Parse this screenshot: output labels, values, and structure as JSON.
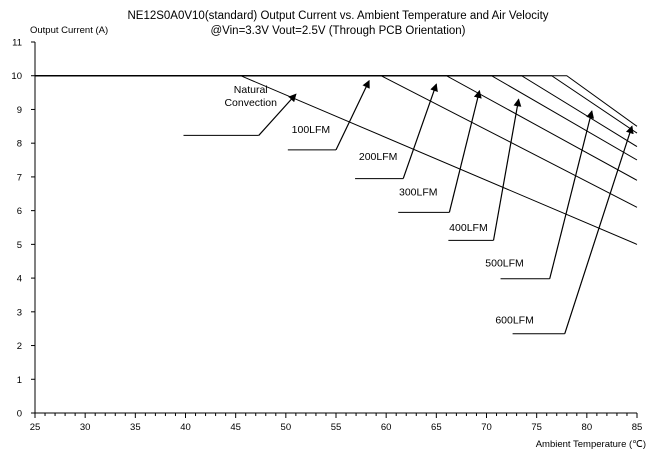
{
  "chart_data": {
    "type": "line",
    "title": "NE12S0A0V10(standard)  Output Current vs. Ambient Temperature and Air Velocity",
    "subtitle": "@Vin=3.3V Vout=2.5V (Through PCB Orientation)",
    "ylabel": "Output Current (A)",
    "xlabel": "Ambient Temperature (℃)",
    "xlim": [
      25,
      85
    ],
    "ylim": [
      0,
      11
    ],
    "xticks": [
      25,
      30,
      35,
      40,
      45,
      50,
      55,
      60,
      65,
      70,
      75,
      80,
      85
    ],
    "yticks": [
      0,
      1,
      2,
      3,
      4,
      5,
      6,
      7,
      8,
      9,
      10,
      11
    ],
    "grid": false,
    "series": [
      {
        "name": "Natural Convection",
        "x": [
          25,
          45.5,
          85
        ],
        "y": [
          10,
          10,
          5.0
        ]
      },
      {
        "name": "100LFM",
        "x": [
          25,
          59.5,
          85
        ],
        "y": [
          10,
          10,
          6.1
        ]
      },
      {
        "name": "200LFM",
        "x": [
          25,
          66,
          85
        ],
        "y": [
          10,
          10,
          6.9
        ]
      },
      {
        "name": "300LFM",
        "x": [
          25,
          70.5,
          85
        ],
        "y": [
          10,
          10,
          7.5
        ]
      },
      {
        "name": "400LFM",
        "x": [
          25,
          73.5,
          85
        ],
        "y": [
          10,
          10,
          7.9
        ]
      },
      {
        "name": "500LFM",
        "x": [
          25,
          76.5,
          85
        ],
        "y": [
          10,
          10,
          8.3
        ]
      },
      {
        "name": "600LFM",
        "x": [
          25,
          78,
          85
        ],
        "y": [
          10,
          10,
          8.5
        ]
      }
    ],
    "annotations": [
      {
        "text": "Natural\nConvection",
        "series": "Natural Convection",
        "tx": 46.5,
        "ty": 9.1,
        "ax": 51,
        "ay": 9.45,
        "baseline": [
          39.8,
          47.3,
          8.23
        ]
      },
      {
        "text": "100LFM",
        "series": "100LFM",
        "tx": 52.5,
        "ty": 8.3,
        "ax": 58.3,
        "ay": 9.85,
        "baseline": [
          50.2,
          55.0,
          7.8
        ]
      },
      {
        "text": "200LFM",
        "series": "200LFM",
        "tx": 59.2,
        "ty": 7.5,
        "ax": 65,
        "ay": 9.75,
        "baseline": [
          56.9,
          61.7,
          6.95
        ]
      },
      {
        "text": "300LFM",
        "series": "300LFM",
        "tx": 63.2,
        "ty": 6.45,
        "ax": 69.3,
        "ay": 9.55,
        "baseline": [
          61.2,
          66.3,
          5.95
        ]
      },
      {
        "text": "400LFM",
        "series": "400LFM",
        "tx": 68.2,
        "ty": 5.4,
        "ax": 73.2,
        "ay": 9.3,
        "baseline": [
          66.2,
          70.7,
          5.12
        ]
      },
      {
        "text": "500LFM",
        "series": "500LFM",
        "tx": 71.8,
        "ty": 4.35,
        "ax": 80.5,
        "ay": 8.95,
        "baseline": [
          71.4,
          76.3,
          3.98
        ]
      },
      {
        "text": "600LFM",
        "series": "600LFM",
        "tx": 72.8,
        "ty": 2.65,
        "ax": 84.5,
        "ay": 8.5,
        "baseline": [
          72.6,
          77.8,
          2.35
        ]
      }
    ]
  }
}
